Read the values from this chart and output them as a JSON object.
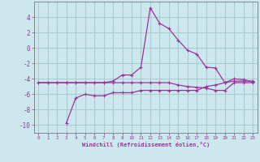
{
  "xlabel": "Windchill (Refroidissement éolien,°C)",
  "bg_color": "#cce8ee",
  "grid_color": "#aacccc",
  "line_color": "#993399",
  "spine_color": "#777777",
  "xlim": [
    -0.5,
    23.5
  ],
  "ylim": [
    -11,
    6
  ],
  "yticks": [
    -10,
    -8,
    -6,
    -4,
    -2,
    0,
    2,
    4
  ],
  "xticks": [
    0,
    1,
    2,
    3,
    4,
    5,
    6,
    7,
    8,
    9,
    10,
    11,
    12,
    13,
    14,
    15,
    16,
    17,
    18,
    19,
    20,
    21,
    22,
    23
  ],
  "series1_x": [
    0,
    1,
    2,
    3,
    4,
    5,
    6,
    7,
    8,
    9,
    10,
    11,
    12,
    13,
    14,
    15,
    16,
    17,
    18,
    19,
    20,
    21,
    22,
    23
  ],
  "series1_y": [
    -4.5,
    -4.5,
    -4.5,
    -4.5,
    -4.5,
    -4.5,
    -4.5,
    -4.5,
    -4.3,
    -3.5,
    -3.5,
    -2.5,
    5.2,
    3.2,
    2.5,
    1.0,
    -0.3,
    -0.8,
    -2.5,
    -2.6,
    -4.5,
    -4.0,
    -4.1,
    -4.4
  ],
  "series2_x": [
    0,
    1,
    2,
    3,
    4,
    5,
    6,
    7,
    8,
    9,
    10,
    11,
    12,
    13,
    14,
    15,
    16,
    17,
    18,
    19,
    20,
    21,
    22,
    23
  ],
  "series2_y": [
    -4.5,
    -4.5,
    -4.5,
    -4.5,
    -4.5,
    -4.5,
    -4.5,
    -4.5,
    -4.5,
    -4.5,
    -4.5,
    -4.5,
    -4.5,
    -4.5,
    -4.5,
    -4.8,
    -5.0,
    -5.1,
    -5.2,
    -5.5,
    -5.5,
    -4.5,
    -4.5,
    -4.5
  ],
  "series3_x": [
    3,
    4,
    5,
    6,
    7,
    8,
    9,
    10,
    11,
    12,
    13,
    14,
    15,
    16,
    17,
    18,
    19,
    20,
    21,
    22,
    23
  ],
  "series3_y": [
    -9.7,
    -6.5,
    -6.0,
    -6.2,
    -6.2,
    -5.8,
    -5.8,
    -5.8,
    -5.5,
    -5.5,
    -5.5,
    -5.5,
    -5.5,
    -5.5,
    -5.5,
    -5.0,
    -4.8,
    -4.5,
    -4.3,
    -4.3,
    -4.3
  ]
}
